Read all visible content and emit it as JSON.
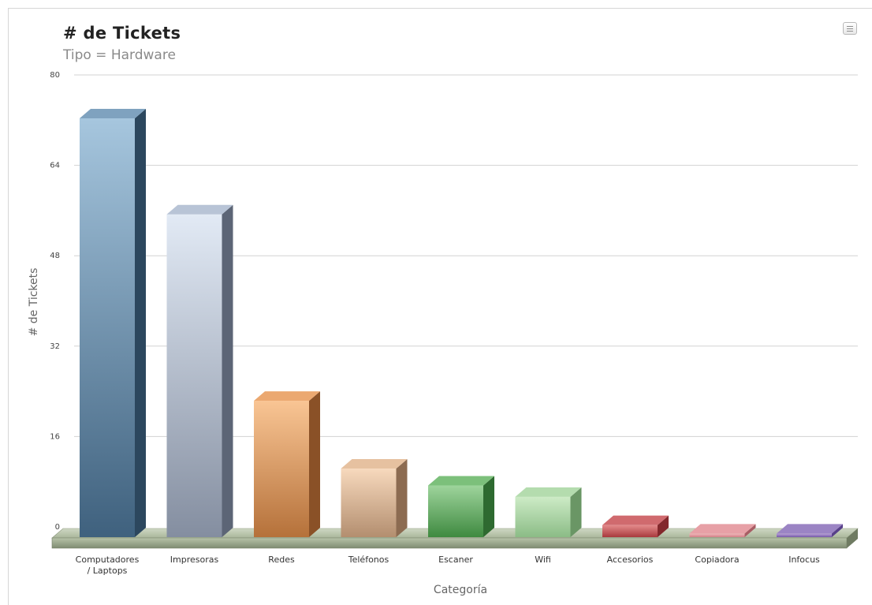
{
  "chart_data": {
    "type": "bar",
    "title": "# de Tickets",
    "subtitle": "Tipo = Hardware",
    "xlabel": "Categoría",
    "ylabel": "# de Tickets",
    "ylim": [
      0,
      80
    ],
    "yticks": [
      0,
      16,
      32,
      48,
      64,
      80
    ],
    "grid": true,
    "categories": [
      [
        "Computadores",
        "/ Laptops"
      ],
      [
        "Impresoras"
      ],
      [
        "Redes"
      ],
      [
        "Teléfonos"
      ],
      [
        "Escaner"
      ],
      [
        "Wifi"
      ],
      [
        "Accesorios"
      ],
      [
        "Copiadora"
      ],
      [
        "Infocus"
      ]
    ],
    "values": [
      74,
      57,
      24,
      12,
      9,
      7,
      2,
      0.5,
      0.5
    ],
    "colors": [
      {
        "light": "#a6c6de",
        "dark": "#3f617e",
        "side": "#2c475e",
        "top": "#7fa2bf"
      },
      {
        "light": "#e2eaf5",
        "dark": "#848ea0",
        "side": "#5c6576",
        "top": "#b8c4d6"
      },
      {
        "light": "#f9c594",
        "dark": "#b5713a",
        "side": "#8a5127",
        "top": "#eba870"
      },
      {
        "light": "#f7d9bd",
        "dark": "#b38e6f",
        "side": "#8c6b51",
        "top": "#e6c1a0"
      },
      {
        "light": "#9ed49c",
        "dark": "#3f8a40",
        "side": "#2e6a30",
        "top": "#7cc07b"
      },
      {
        "light": "#cdebc6",
        "dark": "#8bbc86",
        "side": "#6a9665",
        "top": "#b4dcae"
      },
      {
        "light": "#e48b8b",
        "dark": "#a83a3e",
        "side": "#83282c",
        "top": "#d06a6e"
      },
      {
        "light": "#f2b6ba",
        "dark": "#d07f86",
        "side": "#a85d64",
        "top": "#e7a0a6"
      },
      {
        "light": "#b9a2d8",
        "dark": "#7558a8",
        "side": "#58408a",
        "top": "#9b84c4"
      }
    ]
  }
}
